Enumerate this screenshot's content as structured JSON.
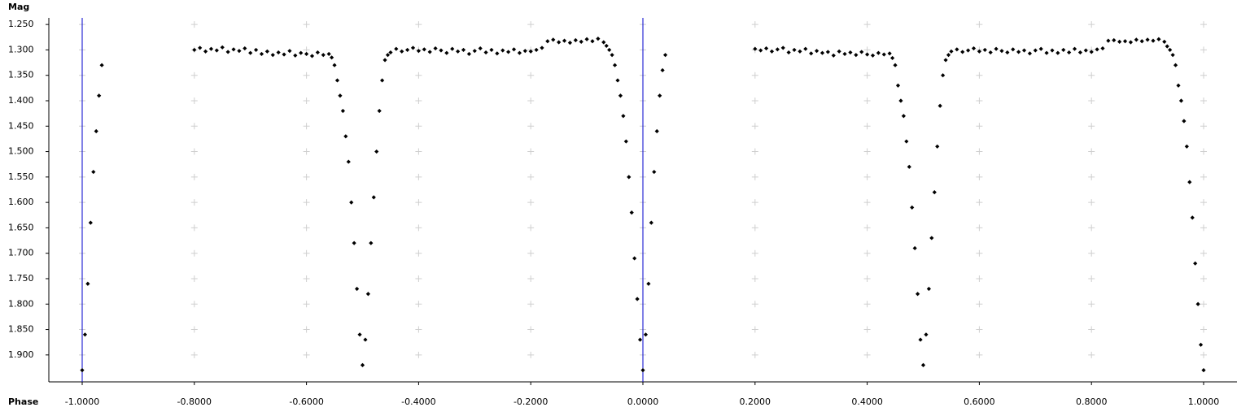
{
  "chart_data": {
    "type": "scatter",
    "ylabel": "Mag",
    "xlabel": "Phase",
    "xlim": [
      -1.0595,
      1.0595
    ],
    "ylim": [
      1.237,
      1.953
    ],
    "y_inverted": true,
    "grid": true,
    "color": "#000000",
    "vlines": [
      -1,
      0
    ],
    "vline_color": "#0000cc",
    "xticks": [
      {
        "value": -1,
        "label": "-1.0000"
      },
      {
        "value": -0.8,
        "label": "-0.8000"
      },
      {
        "value": -0.6,
        "label": "-0.6000"
      },
      {
        "value": -0.4,
        "label": "-0.4000"
      },
      {
        "value": -0.2,
        "label": "-0.2000"
      },
      {
        "value": 0,
        "label": "0.0000"
      },
      {
        "value": 0.2,
        "label": "0.2000"
      },
      {
        "value": 0.4,
        "label": "0.4000"
      },
      {
        "value": 0.6,
        "label": "0.6000"
      },
      {
        "value": 0.8,
        "label": "0.8000"
      },
      {
        "value": 1,
        "label": "1.0000"
      }
    ],
    "yticks": [
      {
        "value": 1.25,
        "label": "1.250"
      },
      {
        "value": 1.3,
        "label": "1.300"
      },
      {
        "value": 1.35,
        "label": "1.350"
      },
      {
        "value": 1.4,
        "label": "1.400"
      },
      {
        "value": 1.45,
        "label": "1.450"
      },
      {
        "value": 1.5,
        "label": "1.500"
      },
      {
        "value": 1.55,
        "label": "1.550"
      },
      {
        "value": 1.6,
        "label": "1.600"
      },
      {
        "value": 1.65,
        "label": "1.650"
      },
      {
        "value": 1.7,
        "label": "1.700"
      },
      {
        "value": 1.75,
        "label": "1.750"
      },
      {
        "value": 1.8,
        "label": "1.800"
      },
      {
        "value": 1.85,
        "label": "1.850"
      },
      {
        "value": 1.9,
        "label": "1.900"
      }
    ],
    "x": [
      -1,
      -0.995,
      -0.99,
      -0.985,
      -0.98,
      -0.975,
      -0.97,
      -0.965,
      -0.8,
      -0.79,
      -0.78,
      -0.77,
      -0.76,
      -0.75,
      -0.74,
      -0.73,
      -0.72,
      -0.71,
      -0.7,
      -0.69,
      -0.68,
      -0.67,
      -0.66,
      -0.65,
      -0.64,
      -0.63,
      -0.62,
      -0.61,
      -0.6,
      -0.59,
      -0.58,
      -0.57,
      -0.56,
      -0.555,
      -0.55,
      -0.545,
      -0.54,
      -0.535,
      -0.53,
      -0.525,
      -0.52,
      -0.515,
      -0.51,
      -0.505,
      -0.5,
      -0.495,
      -0.49,
      -0.485,
      -0.48,
      -0.475,
      -0.47,
      -0.465,
      -0.46,
      -0.455,
      -0.45,
      -0.44,
      -0.43,
      -0.42,
      -0.41,
      -0.4,
      -0.39,
      -0.38,
      -0.37,
      -0.36,
      -0.35,
      -0.34,
      -0.33,
      -0.32,
      -0.31,
      -0.3,
      -0.29,
      -0.28,
      -0.27,
      -0.26,
      -0.25,
      -0.24,
      -0.23,
      -0.22,
      -0.21,
      -0.2,
      -0.19,
      -0.18,
      -0.17,
      -0.16,
      -0.15,
      -0.14,
      -0.13,
      -0.12,
      -0.11,
      -0.1,
      -0.09,
      -0.08,
      -0.07,
      -0.065,
      -0.06,
      -0.055,
      -0.05,
      -0.045,
      -0.04,
      -0.035,
      -0.03,
      -0.025,
      -0.02,
      -0.015,
      -0.01,
      -0.005,
      0.0,
      0.005,
      0.01,
      0.015,
      0.02,
      0.025,
      0.03,
      0.035,
      0.04,
      0.2,
      0.21,
      0.22,
      0.23,
      0.24,
      0.25,
      0.26,
      0.27,
      0.28,
      0.29,
      0.3,
      0.31,
      0.32,
      0.33,
      0.34,
      0.35,
      0.36,
      0.37,
      0.38,
      0.39,
      0.4,
      0.41,
      0.42,
      0.43,
      0.44,
      0.445,
      0.45,
      0.455,
      0.46,
      0.465,
      0.47,
      0.475,
      0.48,
      0.485,
      0.49,
      0.495,
      0.5,
      0.505,
      0.51,
      0.515,
      0.52,
      0.525,
      0.53,
      0.535,
      0.54,
      0.545,
      0.55,
      0.56,
      0.57,
      0.58,
      0.59,
      0.6,
      0.61,
      0.62,
      0.63,
      0.64,
      0.65,
      0.66,
      0.67,
      0.68,
      0.69,
      0.7,
      0.71,
      0.72,
      0.73,
      0.74,
      0.75,
      0.76,
      0.77,
      0.78,
      0.79,
      0.8,
      0.81,
      0.82,
      0.83,
      0.84,
      0.85,
      0.86,
      0.87,
      0.88,
      0.89,
      0.9,
      0.91,
      0.92,
      0.93,
      0.935,
      0.94,
      0.945,
      0.95,
      0.955,
      0.96,
      0.965,
      0.97,
      0.975,
      0.98,
      0.985,
      0.99,
      0.995,
      1.0
    ],
    "values": [
      1.93,
      1.86,
      1.76,
      1.64,
      1.54,
      1.46,
      1.39,
      1.33,
      1.3,
      1.296,
      1.303,
      1.298,
      1.301,
      1.295,
      1.304,
      1.299,
      1.302,
      1.297,
      1.306,
      1.3,
      1.308,
      1.303,
      1.31,
      1.305,
      1.309,
      1.302,
      1.311,
      1.306,
      1.308,
      1.312,
      1.305,
      1.31,
      1.308,
      1.315,
      1.33,
      1.36,
      1.39,
      1.42,
      1.47,
      1.52,
      1.6,
      1.68,
      1.77,
      1.86,
      1.92,
      1.87,
      1.78,
      1.68,
      1.59,
      1.5,
      1.42,
      1.36,
      1.32,
      1.31,
      1.305,
      1.298,
      1.303,
      1.3,
      1.296,
      1.302,
      1.299,
      1.304,
      1.297,
      1.301,
      1.306,
      1.298,
      1.303,
      1.3,
      1.308,
      1.302,
      1.297,
      1.305,
      1.3,
      1.307,
      1.301,
      1.304,
      1.299,
      1.306,
      1.302,
      1.303,
      1.3,
      1.296,
      1.283,
      1.28,
      1.285,
      1.282,
      1.286,
      1.281,
      1.284,
      1.279,
      1.283,
      1.278,
      1.285,
      1.292,
      1.3,
      1.31,
      1.33,
      1.36,
      1.39,
      1.43,
      1.48,
      1.55,
      1.62,
      1.71,
      1.79,
      1.87,
      1.93,
      1.86,
      1.76,
      1.64,
      1.54,
      1.46,
      1.39,
      1.34,
      1.31,
      1.298,
      1.301,
      1.297,
      1.303,
      1.299,
      1.296,
      1.305,
      1.3,
      1.303,
      1.298,
      1.307,
      1.302,
      1.306,
      1.304,
      1.311,
      1.303,
      1.308,
      1.305,
      1.31,
      1.304,
      1.309,
      1.311,
      1.306,
      1.309,
      1.307,
      1.316,
      1.33,
      1.37,
      1.4,
      1.43,
      1.48,
      1.53,
      1.61,
      1.69,
      1.78,
      1.87,
      1.92,
      1.86,
      1.77,
      1.67,
      1.58,
      1.49,
      1.41,
      1.35,
      1.32,
      1.31,
      1.303,
      1.299,
      1.304,
      1.301,
      1.297,
      1.303,
      1.3,
      1.305,
      1.298,
      1.302,
      1.305,
      1.299,
      1.304,
      1.301,
      1.307,
      1.301,
      1.298,
      1.306,
      1.301,
      1.306,
      1.3,
      1.305,
      1.298,
      1.305,
      1.301,
      1.304,
      1.299,
      1.297,
      1.282,
      1.281,
      1.284,
      1.283,
      1.285,
      1.28,
      1.283,
      1.28,
      1.282,
      1.279,
      1.284,
      1.293,
      1.3,
      1.31,
      1.33,
      1.37,
      1.4,
      1.44,
      1.49,
      1.56,
      1.63,
      1.72,
      1.8,
      1.88,
      1.93
    ]
  }
}
